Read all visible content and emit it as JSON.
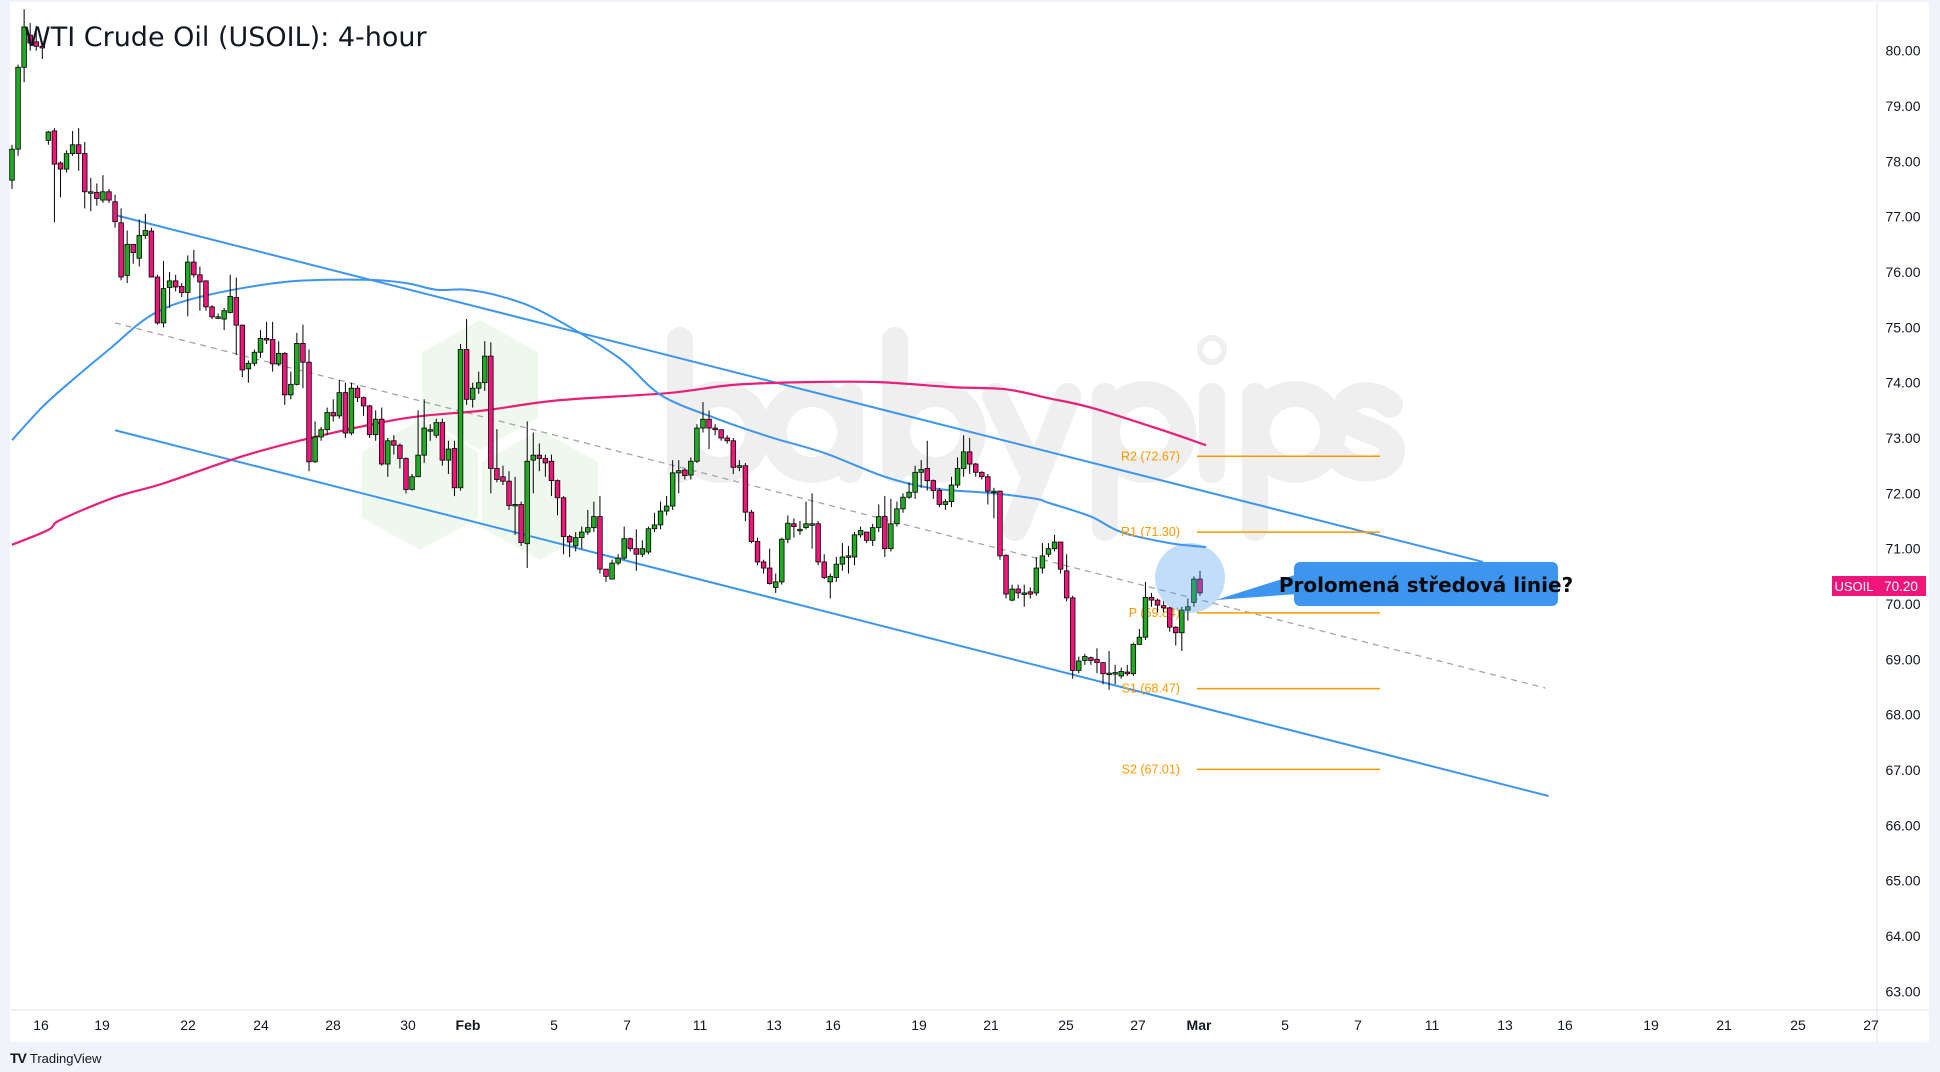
{
  "title": "WTI Crude Oil (USOIL): 4-hour",
  "watermark": "babypips",
  "footer": {
    "brand": "TradingView",
    "logo_glyph": "17"
  },
  "colors": {
    "up": "#22ab22",
    "down": "#f0157a",
    "ma_fast": "#3d95f0",
    "ma_slow": "#e91e78",
    "channel": "#3d95f0",
    "pivot": "#ff9800",
    "callout": "#3d95f0",
    "price_tag": "#f0157a"
  },
  "price_tag": {
    "symbol": "USOIL",
    "value": "70.20"
  },
  "callout": {
    "text": "Prolomená středová linie?"
  },
  "chart_data": {
    "type": "candlestick",
    "title": "WTI Crude Oil (USOIL): 4-hour",
    "ylim": [
      62.75,
      80.9
    ],
    "y_ticks": [
      "80.00",
      "79.00",
      "78.00",
      "77.00",
      "76.00",
      "75.00",
      "74.00",
      "73.00",
      "72.00",
      "71.00",
      "70.00",
      "69.00",
      "68.00",
      "67.00",
      "66.00",
      "65.00",
      "64.00",
      "63.00"
    ],
    "x_ticks": [
      "16",
      "19",
      "22",
      "24",
      "28",
      "30",
      "Feb",
      "5",
      "7",
      "11",
      "13",
      "16",
      "19",
      "21",
      "25",
      "27",
      "Mar",
      "5",
      "7",
      "11",
      "13",
      "16",
      "19",
      "21",
      "25",
      "27"
    ],
    "candles_ohlc": [
      [
        77.66,
        78.3,
        77.5,
        78.22
      ],
      [
        78.22,
        79.75,
        78.1,
        79.7
      ],
      [
        79.7,
        80.75,
        79.43,
        80.43
      ],
      [
        80.28,
        80.5,
        80.0,
        80.14
      ],
      [
        80.16,
        80.45,
        80.0,
        80.08
      ],
      [
        80.08,
        80.1,
        79.85,
        80.05
      ],
      [
        78.38,
        78.55,
        78.3,
        78.53
      ],
      [
        78.55,
        78.6,
        76.9,
        77.95
      ],
      [
        77.97,
        78.0,
        77.35,
        77.86
      ],
      [
        77.86,
        78.2,
        77.8,
        78.14
      ],
      [
        78.14,
        78.55,
        78.1,
        78.3
      ],
      [
        78.3,
        78.6,
        77.83,
        78.14
      ],
      [
        78.14,
        78.35,
        77.15,
        77.45
      ],
      [
        77.45,
        77.7,
        77.1,
        77.45
      ],
      [
        77.44,
        77.6,
        77.2,
        77.33
      ],
      [
        77.3,
        77.75,
        77.25,
        77.45
      ],
      [
        77.45,
        77.5,
        77.25,
        77.3
      ],
      [
        77.27,
        77.4,
        76.8,
        76.91
      ],
      [
        76.89,
        77.15,
        75.85,
        75.91
      ],
      [
        75.94,
        76.75,
        75.8,
        76.5
      ],
      [
        76.5,
        76.5,
        76.15,
        76.35
      ],
      [
        76.25,
        76.95,
        76.1,
        76.66
      ],
      [
        76.66,
        77.05,
        76.6,
        76.75
      ],
      [
        76.74,
        76.8,
        75.9,
        75.91
      ],
      [
        75.91,
        75.95,
        75.05,
        75.08
      ],
      [
        75.08,
        76.2,
        75.0,
        75.7
      ],
      [
        75.72,
        76.0,
        75.35,
        75.84
      ],
      [
        75.84,
        75.95,
        75.65,
        75.73
      ],
      [
        75.74,
        75.8,
        75.55,
        75.63
      ],
      [
        75.63,
        76.3,
        75.2,
        76.18
      ],
      [
        76.18,
        76.4,
        75.9,
        75.95
      ],
      [
        75.95,
        76.1,
        75.3,
        75.82
      ],
      [
        75.84,
        75.85,
        75.3,
        75.37
      ],
      [
        75.37,
        75.4,
        75.15,
        75.19
      ],
      [
        75.19,
        75.25,
        75.15,
        75.19
      ],
      [
        75.15,
        75.35,
        74.95,
        75.3
      ],
      [
        75.27,
        75.95,
        75.25,
        75.56
      ],
      [
        75.54,
        75.9,
        74.5,
        75.04
      ],
      [
        75.04,
        75.05,
        74.1,
        74.23
      ],
      [
        74.25,
        74.4,
        74.0,
        74.35
      ],
      [
        74.35,
        74.6,
        74.3,
        74.55
      ],
      [
        74.55,
        74.95,
        74.45,
        74.8
      ],
      [
        74.8,
        75.1,
        74.7,
        74.77
      ],
      [
        74.78,
        75.1,
        74.2,
        74.34
      ],
      [
        74.34,
        74.75,
        74.3,
        74.53
      ],
      [
        74.53,
        74.55,
        73.6,
        73.78
      ],
      [
        73.78,
        74.2,
        73.7,
        73.97
      ],
      [
        73.97,
        74.9,
        73.95,
        74.71
      ],
      [
        74.71,
        75.05,
        73.9,
        74.37
      ],
      [
        74.37,
        74.6,
        72.4,
        72.57
      ],
      [
        72.57,
        73.3,
        72.55,
        73.02
      ],
      [
        73.02,
        73.2,
        72.95,
        73.15
      ],
      [
        73.15,
        73.55,
        73.05,
        73.46
      ],
      [
        73.46,
        73.7,
        73.3,
        73.4
      ],
      [
        73.4,
        74.05,
        73.35,
        73.82
      ],
      [
        73.82,
        74.0,
        73.0,
        73.09
      ],
      [
        73.09,
        74.0,
        73.05,
        73.9
      ],
      [
        73.9,
        73.95,
        73.65,
        73.73
      ],
      [
        73.73,
        73.75,
        73.4,
        73.58
      ],
      [
        73.58,
        73.6,
        73.0,
        73.06
      ],
      [
        73.06,
        73.5,
        72.95,
        73.34
      ],
      [
        73.34,
        73.55,
        72.5,
        72.53
      ],
      [
        72.53,
        73.0,
        72.3,
        72.95
      ],
      [
        72.95,
        73.05,
        72.7,
        72.87
      ],
      [
        72.87,
        72.9,
        72.45,
        72.63
      ],
      [
        72.63,
        72.65,
        72.0,
        72.07
      ],
      [
        72.07,
        72.35,
        72.05,
        72.3
      ],
      [
        72.3,
        73.5,
        72.3,
        72.69
      ],
      [
        72.69,
        73.7,
        72.55,
        73.18
      ],
      [
        73.15,
        73.25,
        72.95,
        73.15
      ],
      [
        73.05,
        73.35,
        73.0,
        73.28
      ],
      [
        73.28,
        73.35,
        72.5,
        72.6
      ],
      [
        72.6,
        72.95,
        72.35,
        72.8
      ],
      [
        72.81,
        72.95,
        71.95,
        72.1
      ],
      [
        72.1,
        74.7,
        72.05,
        74.6
      ],
      [
        74.6,
        75.15,
        73.6,
        73.7
      ],
      [
        73.7,
        74.0,
        73.55,
        73.9
      ],
      [
        73.9,
        74.2,
        73.8,
        74.0
      ],
      [
        74.0,
        74.75,
        73.85,
        74.48
      ],
      [
        74.48,
        74.73,
        72.0,
        72.45
      ],
      [
        72.45,
        73.16,
        72.2,
        72.25
      ],
      [
        72.3,
        72.5,
        72.15,
        72.22
      ],
      [
        72.22,
        72.4,
        71.7,
        71.78
      ],
      [
        71.8,
        72.3,
        71.25,
        71.8
      ],
      [
        71.8,
        71.85,
        71.05,
        71.11
      ],
      [
        71.09,
        73.3,
        70.65,
        72.58
      ],
      [
        72.6,
        73.1,
        72.0,
        72.69
      ],
      [
        72.69,
        72.9,
        72.4,
        72.63
      ],
      [
        72.63,
        72.7,
        72.3,
        72.55
      ],
      [
        72.58,
        72.7,
        71.95,
        72.23
      ],
      [
        72.23,
        72.25,
        71.6,
        71.92
      ],
      [
        71.92,
        71.95,
        70.9,
        71.22
      ],
      [
        71.22,
        71.25,
        70.85,
        71.12
      ],
      [
        71.05,
        71.3,
        70.95,
        71.2
      ],
      [
        71.2,
        71.4,
        71.0,
        71.3
      ],
      [
        71.3,
        71.7,
        71.25,
        71.38
      ],
      [
        71.38,
        71.85,
        71.3,
        71.58
      ],
      [
        71.58,
        71.95,
        70.55,
        70.63
      ],
      [
        70.63,
        70.6,
        70.4,
        70.5
      ],
      [
        70.45,
        70.8,
        70.45,
        70.74
      ],
      [
        70.74,
        70.9,
        70.7,
        70.83
      ],
      [
        70.83,
        71.4,
        70.8,
        71.18
      ],
      [
        71.18,
        71.2,
        70.95,
        71.0
      ],
      [
        71.0,
        71.35,
        70.6,
        70.9
      ],
      [
        70.9,
        71.15,
        70.85,
        71.0
      ],
      [
        70.94,
        71.4,
        70.9,
        71.36
      ],
      [
        71.36,
        71.65,
        71.3,
        71.43
      ],
      [
        71.43,
        71.85,
        71.35,
        71.68
      ],
      [
        71.68,
        71.95,
        71.6,
        71.77
      ],
      [
        71.77,
        72.6,
        71.7,
        72.37
      ],
      [
        72.37,
        72.6,
        72.0,
        72.41
      ],
      [
        72.42,
        72.45,
        72.25,
        72.32
      ],
      [
        72.33,
        72.65,
        72.25,
        72.58
      ],
      [
        72.58,
        73.25,
        72.55,
        73.18
      ],
      [
        73.18,
        73.65,
        73.1,
        73.34
      ],
      [
        73.34,
        73.5,
        72.8,
        73.18
      ],
      [
        73.18,
        73.25,
        73.05,
        73.15
      ],
      [
        73.15,
        73.1,
        72.95,
        73.0
      ],
      [
        73.0,
        73.05,
        72.9,
        72.95
      ],
      [
        72.95,
        73.0,
        72.35,
        72.47
      ],
      [
        72.47,
        72.6,
        72.4,
        72.5
      ],
      [
        72.5,
        72.55,
        71.5,
        71.66
      ],
      [
        71.66,
        71.7,
        71.1,
        71.13
      ],
      [
        71.13,
        71.2,
        70.7,
        70.76
      ],
      [
        70.76,
        70.8,
        70.55,
        70.65
      ],
      [
        70.65,
        71.0,
        70.35,
        70.37
      ],
      [
        70.3,
        70.55,
        70.2,
        70.4
      ],
      [
        70.4,
        71.2,
        70.35,
        71.17
      ],
      [
        71.17,
        71.6,
        71.1,
        71.46
      ],
      [
        71.45,
        71.55,
        71.2,
        71.4
      ],
      [
        71.35,
        71.5,
        71.25,
        71.35
      ],
      [
        71.38,
        71.85,
        71.35,
        71.45
      ],
      [
        71.45,
        72.0,
        71.0,
        71.45
      ],
      [
        71.45,
        71.5,
        70.7,
        70.76
      ],
      [
        70.76,
        70.9,
        70.45,
        70.48
      ],
      [
        70.4,
        70.55,
        70.1,
        70.5
      ],
      [
        70.48,
        70.85,
        70.4,
        70.72
      ],
      [
        70.72,
        71.1,
        70.6,
        70.85
      ],
      [
        70.85,
        71.05,
        70.55,
        70.87
      ],
      [
        70.85,
        71.3,
        70.7,
        71.25
      ],
      [
        71.25,
        71.4,
        71.2,
        71.33
      ],
      [
        71.3,
        71.3,
        71.1,
        71.15
      ],
      [
        71.15,
        71.45,
        71.05,
        71.38
      ],
      [
        71.38,
        71.8,
        71.3,
        71.58
      ],
      [
        71.58,
        71.95,
        70.85,
        71.0
      ],
      [
        71.0,
        71.9,
        70.95,
        71.45
      ],
      [
        71.45,
        71.85,
        71.4,
        71.72
      ],
      [
        71.72,
        72.0,
        71.65,
        71.93
      ],
      [
        71.93,
        72.2,
        71.9,
        72.02
      ],
      [
        72.02,
        72.5,
        71.9,
        72.38
      ],
      [
        72.38,
        72.6,
        72.1,
        72.43
      ],
      [
        72.45,
        72.95,
        72.05,
        72.23
      ],
      [
        72.23,
        72.25,
        71.9,
        72.05
      ],
      [
        72.05,
        72.1,
        71.75,
        71.8
      ],
      [
        71.8,
        71.9,
        71.7,
        71.85
      ],
      [
        71.85,
        72.3,
        71.75,
        72.15
      ],
      [
        72.15,
        72.65,
        72.1,
        72.45
      ],
      [
        72.45,
        73.05,
        72.3,
        72.75
      ],
      [
        72.75,
        73.0,
        72.35,
        72.53
      ],
      [
        72.53,
        72.55,
        72.3,
        72.38
      ],
      [
        72.38,
        72.4,
        72.25,
        72.3
      ],
      [
        72.3,
        72.35,
        71.8,
        72.04
      ],
      [
        72.04,
        72.1,
        71.55,
        72.04
      ],
      [
        72.04,
        72.05,
        70.8,
        70.87
      ],
      [
        70.88,
        70.9,
        70.1,
        70.18
      ],
      [
        70.07,
        70.35,
        70.05,
        70.27
      ],
      [
        70.27,
        70.35,
        70.1,
        70.2
      ],
      [
        70.2,
        70.35,
        69.95,
        70.2
      ],
      [
        70.22,
        70.3,
        70.1,
        70.18
      ],
      [
        70.2,
        70.85,
        70.15,
        70.65
      ],
      [
        70.65,
        71.1,
        70.55,
        70.87
      ],
      [
        70.9,
        71.1,
        70.85,
        71.0
      ],
      [
        71.0,
        71.25,
        70.95,
        71.12
      ],
      [
        71.12,
        71.12,
        70.55,
        70.63
      ],
      [
        70.6,
        70.9,
        70.05,
        70.11
      ],
      [
        70.11,
        70.15,
        68.65,
        68.8
      ],
      [
        68.8,
        69.05,
        68.75,
        68.97
      ],
      [
        68.98,
        69.1,
        68.9,
        69.05
      ],
      [
        69.03,
        69.05,
        68.9,
        68.98
      ],
      [
        69.0,
        69.2,
        68.75,
        68.94
      ],
      [
        68.94,
        68.95,
        68.55,
        68.74
      ],
      [
        68.75,
        69.15,
        68.45,
        68.75
      ],
      [
        68.74,
        68.9,
        68.55,
        68.76
      ],
      [
        68.7,
        68.85,
        68.65,
        68.78
      ],
      [
        68.77,
        68.9,
        68.7,
        68.74
      ],
      [
        68.74,
        69.3,
        68.7,
        69.27
      ],
      [
        69.27,
        69.55,
        69.3,
        69.4
      ],
      [
        69.4,
        70.4,
        69.35,
        70.12
      ],
      [
        70.12,
        70.2,
        69.95,
        70.07
      ],
      [
        70.07,
        70.1,
        69.85,
        69.98
      ],
      [
        69.97,
        70.05,
        69.85,
        69.93
      ],
      [
        69.93,
        69.95,
        69.5,
        69.58
      ],
      [
        69.58,
        69.6,
        69.25,
        69.48
      ],
      [
        69.48,
        69.95,
        69.15,
        69.89
      ],
      [
        69.89,
        70.1,
        69.7,
        69.95
      ],
      [
        70.03,
        70.5,
        69.95,
        70.45
      ],
      [
        70.45,
        70.6,
        70.15,
        70.2
      ]
    ],
    "ma_fast_points_bar_value": [
      [
        0,
        72.96
      ],
      [
        5,
        73.56
      ],
      [
        10,
        74.05
      ],
      [
        16,
        74.6
      ],
      [
        23,
        75.22
      ],
      [
        31,
        75.55
      ],
      [
        45,
        75.82
      ],
      [
        58,
        75.86
      ],
      [
        65,
        75.8
      ],
      [
        70,
        75.68
      ],
      [
        75,
        75.68
      ],
      [
        81,
        75.55
      ],
      [
        88,
        75.25
      ],
      [
        100,
        74.46
      ],
      [
        107,
        73.78
      ],
      [
        116,
        73.36
      ],
      [
        125,
        73.02
      ],
      [
        134,
        72.73
      ],
      [
        144,
        72.3
      ],
      [
        152,
        72.09
      ],
      [
        162,
        72.0
      ],
      [
        169,
        71.9
      ],
      [
        171,
        71.83
      ],
      [
        178,
        71.58
      ],
      [
        183,
        71.3
      ],
      [
        191,
        71.1
      ],
      [
        197,
        71.03
      ]
    ],
    "ma_slow_points_bar_value": [
      [
        0,
        71.07
      ],
      [
        6,
        71.34
      ],
      [
        8,
        71.52
      ],
      [
        17,
        71.93
      ],
      [
        25,
        72.18
      ],
      [
        38,
        72.67
      ],
      [
        50,
        73.02
      ],
      [
        65,
        73.36
      ],
      [
        78,
        73.5
      ],
      [
        90,
        73.68
      ],
      [
        108,
        73.81
      ],
      [
        119,
        73.96
      ],
      [
        131,
        74.01
      ],
      [
        143,
        74.01
      ],
      [
        155,
        73.92
      ],
      [
        164,
        73.88
      ],
      [
        171,
        73.72
      ],
      [
        178,
        73.55
      ],
      [
        189,
        73.17
      ],
      [
        197,
        72.87
      ]
    ],
    "channel_upper_bar_value": [
      [
        17,
        77.03
      ],
      [
        242.7,
        70.76
      ]
    ],
    "channel_mid_bar_value": [
      [
        17,
        75.08
      ],
      [
        253,
        68.48
      ]
    ],
    "channel_lower_bar_value": [
      [
        17,
        73.14
      ],
      [
        253.5,
        66.53
      ]
    ],
    "pivots": [
      {
        "label": "R2 (72.67)",
        "value": 72.67
      },
      {
        "label": "R1 (71.30)",
        "value": 71.3
      },
      {
        "label": "P (69.84)",
        "value": 69.84
      },
      {
        "label": "S1 (68.47)",
        "value": 68.47
      },
      {
        "label": "S2 (67.01)",
        "value": 67.01
      }
    ],
    "last_price": 70.2
  }
}
